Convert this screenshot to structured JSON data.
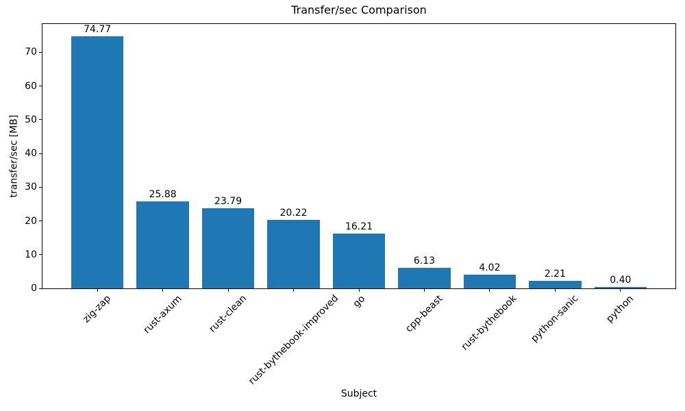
{
  "chart_data": {
    "type": "bar",
    "title": "Transfer/sec Comparison",
    "xlabel": "Subject",
    "ylabel": "transfer/sec [MB]",
    "categories": [
      "zig-zap",
      "rust-axum",
      "rust-clean",
      "rust-bythebook-improved",
      "go",
      "cpp-beast",
      "rust-bythebook",
      "python-sanic",
      "python"
    ],
    "values": [
      74.77,
      25.88,
      23.79,
      20.22,
      16.21,
      6.13,
      4.02,
      2.21,
      0.4
    ],
    "value_labels": [
      "74.77",
      "25.88",
      "23.79",
      "20.22",
      "16.21",
      "6.13",
      "4.02",
      "2.21",
      "0.40"
    ],
    "yticks": [
      0,
      10,
      20,
      30,
      40,
      50,
      60,
      70
    ],
    "ylim": [
      0,
      78.4
    ],
    "bar_color": "#1f77b4",
    "grid": false,
    "legend": "none",
    "x_tick_rotation_deg": 45
  }
}
